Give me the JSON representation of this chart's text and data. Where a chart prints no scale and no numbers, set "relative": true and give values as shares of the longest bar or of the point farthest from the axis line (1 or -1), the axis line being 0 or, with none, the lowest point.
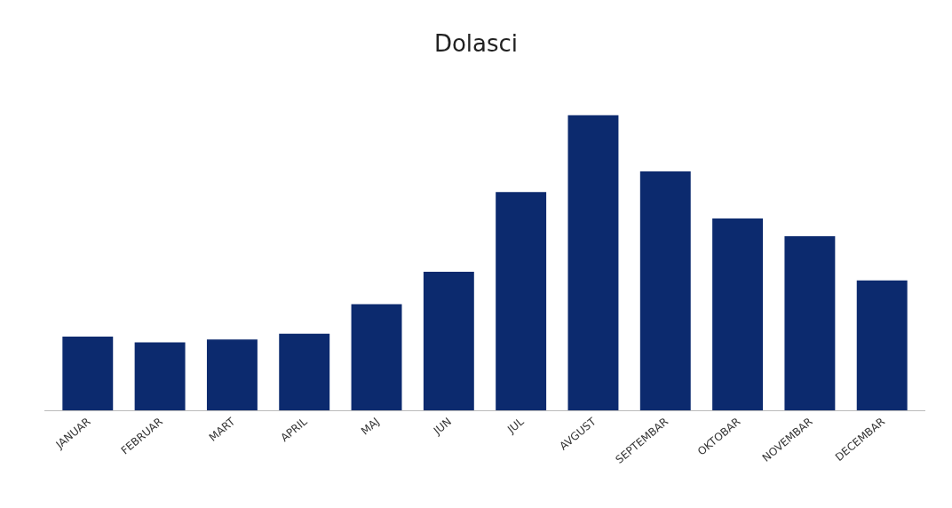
{
  "chart_data": {
    "type": "bar",
    "title": "Dolasci",
    "relative": true,
    "categories": [
      "JANUAR",
      "FEBRUAR",
      "MART",
      "APRIL",
      "MAJ",
      "JUN",
      "JUL",
      "AVGUST",
      "SEPTEMBAR",
      "OKTOBAR",
      "NOVEMBAR",
      "DECEMBAR"
    ],
    "values": [
      0.25,
      0.23,
      0.24,
      0.26,
      0.36,
      0.47,
      0.74,
      1,
      0.81,
      0.65,
      0.59,
      0.44
    ],
    "color": "#0c2a6e"
  }
}
